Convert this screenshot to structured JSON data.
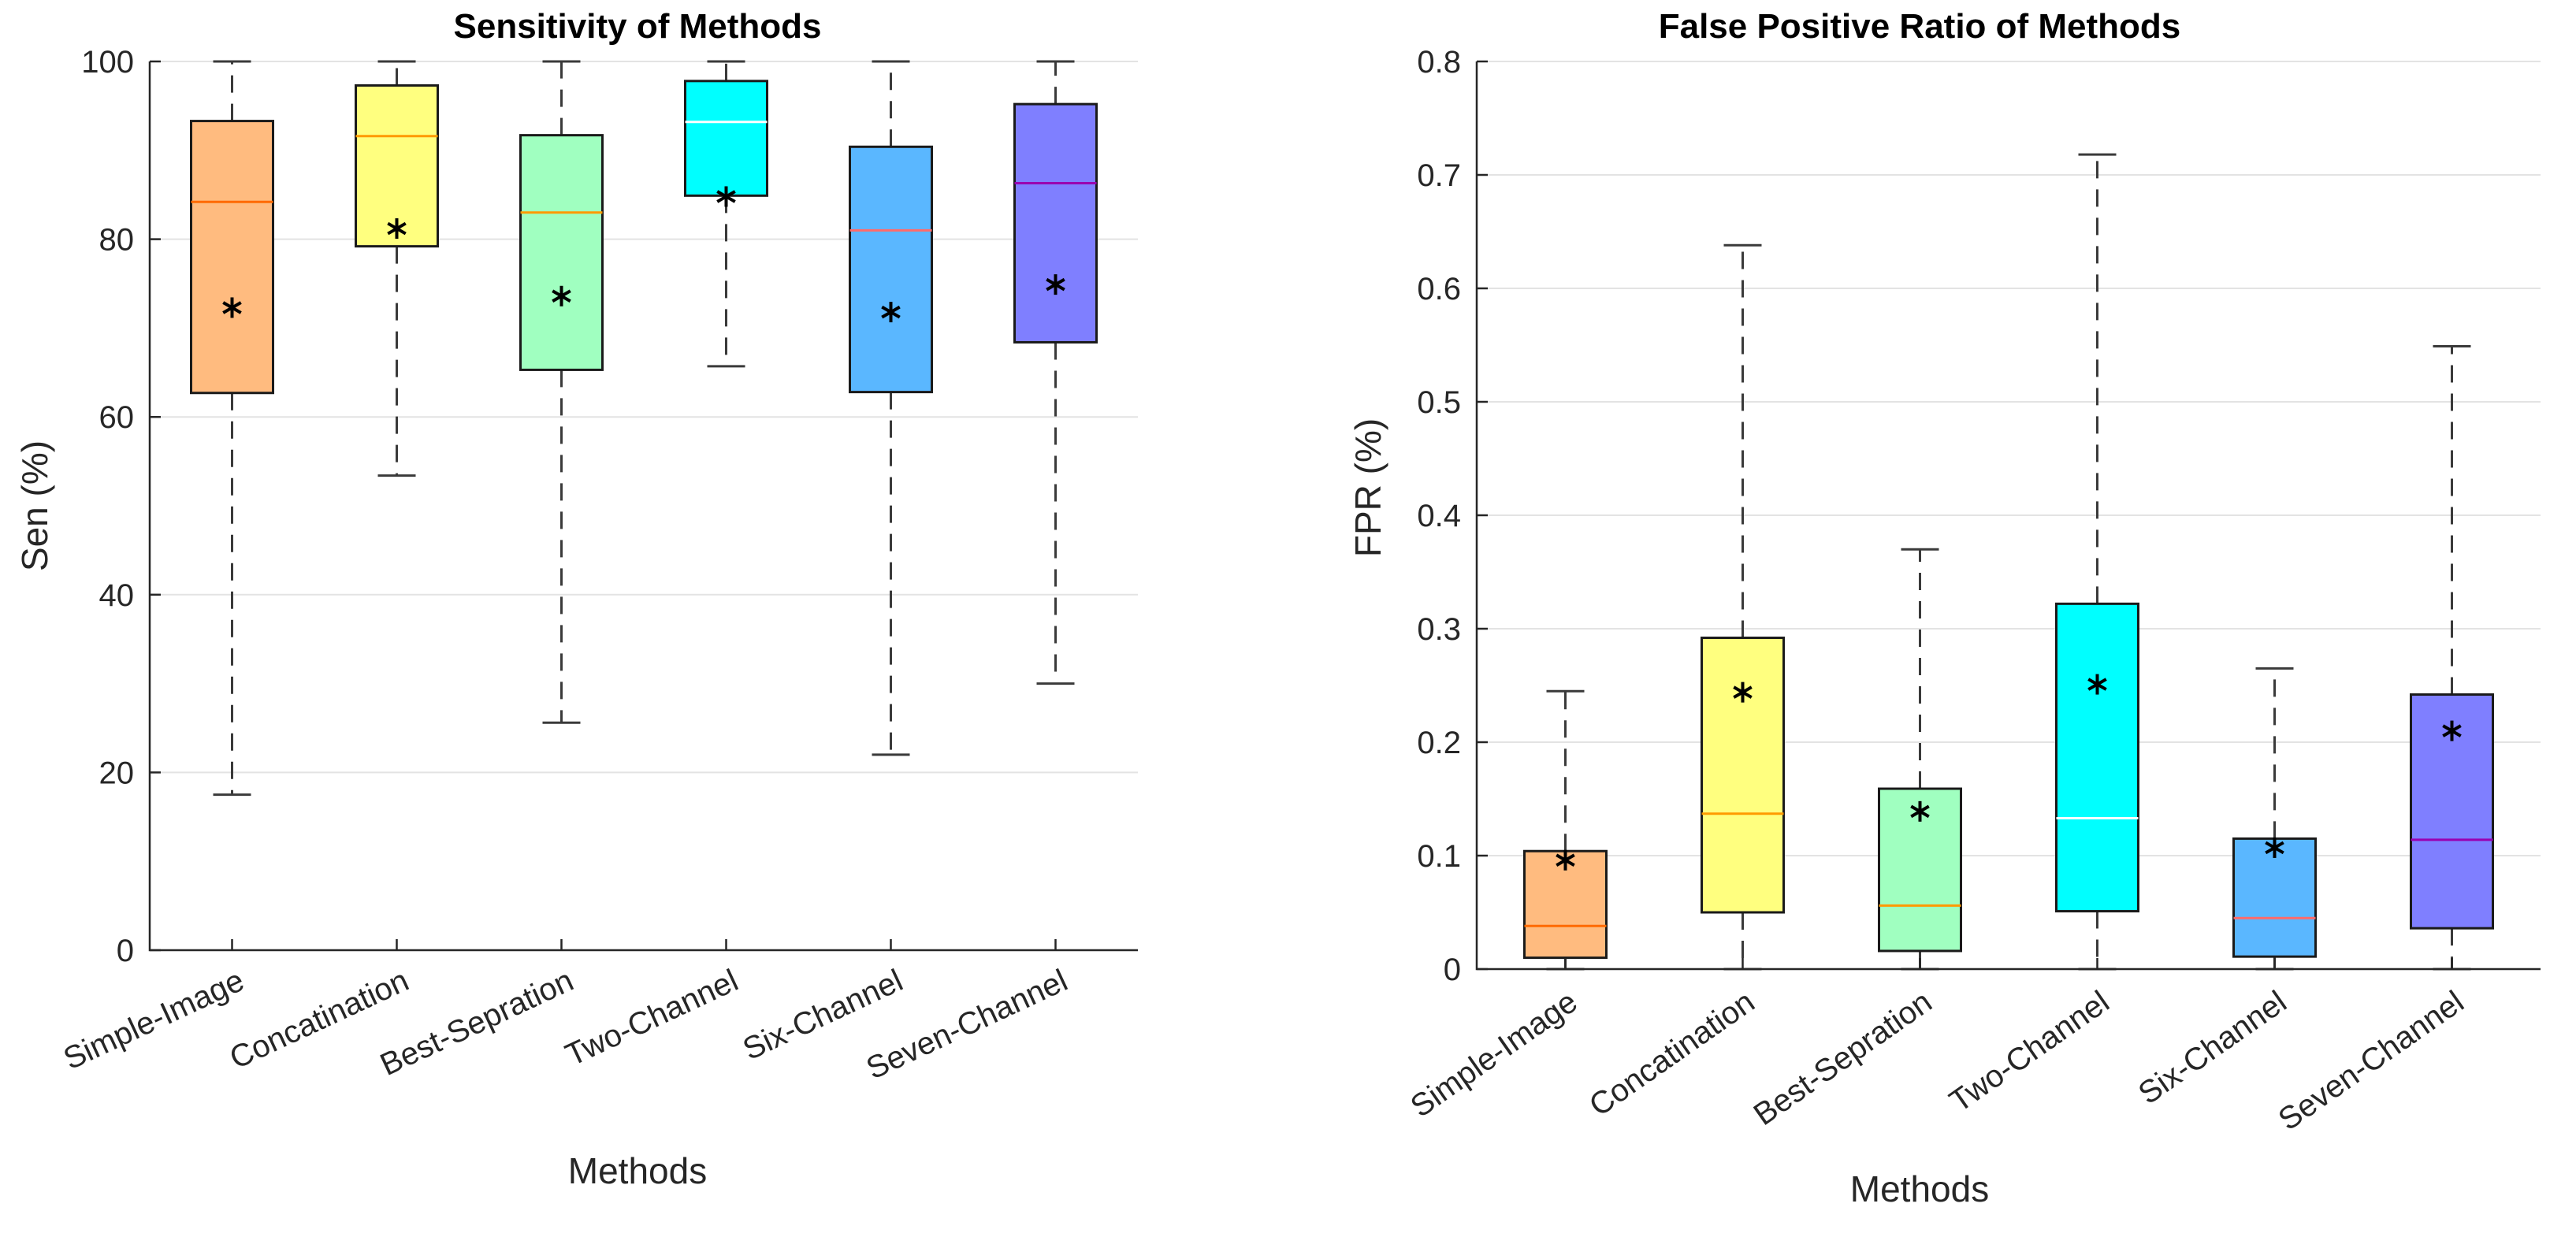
{
  "chart_data": [
    {
      "type": "box",
      "title": "Sensitivity of Methods",
      "xlabel": "Methods",
      "ylabel": "Sen (%)",
      "ylim": [
        0,
        100
      ],
      "yticks": [
        0,
        20,
        40,
        60,
        80,
        100
      ],
      "grid": "horizontal",
      "categories": [
        "Simple-Image",
        "Concatination",
        "Best-Sepration",
        "Two-Channel",
        "Six-Channel",
        "Seven-Channel"
      ],
      "colors": [
        "#ffbb7f",
        "#ffff7f",
        "#a0ffc0",
        "#00ffff",
        "#5ab7ff",
        "#7f7fff"
      ],
      "median_colors": [
        "#ff6a00",
        "#ff9a00",
        "#ff9a00",
        "#ffffff",
        "#ff6a6a",
        "#9a00b0"
      ],
      "boxes": [
        {
          "whisker_low": 17.5,
          "q1": 62.7,
          "median": 84.2,
          "q3": 93.3,
          "whisker_high": 100,
          "mean": 72.3
        },
        {
          "whisker_low": 53.4,
          "q1": 79.2,
          "median": 91.6,
          "q3": 97.3,
          "whisker_high": 100,
          "mean": 81.2
        },
        {
          "whisker_low": 25.6,
          "q1": 65.3,
          "median": 83.0,
          "q3": 91.7,
          "whisker_high": 100,
          "mean": 73.6
        },
        {
          "whisker_low": 65.7,
          "q1": 84.9,
          "median": 93.2,
          "q3": 97.8,
          "whisker_high": 100,
          "mean": 84.8
        },
        {
          "whisker_low": 22.0,
          "q1": 62.8,
          "median": 81.0,
          "q3": 90.4,
          "whisker_high": 100,
          "mean": 71.8
        },
        {
          "whisker_low": 30.0,
          "q1": 68.4,
          "median": 86.3,
          "q3": 95.2,
          "whisker_high": 100,
          "mean": 74.9
        }
      ]
    },
    {
      "type": "box",
      "title": "False Positive Ratio of Methods",
      "xlabel": "Methods",
      "ylabel": "FPR (%)",
      "ylim": [
        0,
        0.8
      ],
      "yticks": [
        0,
        0.1,
        0.2,
        0.3,
        0.4,
        0.5,
        0.6,
        0.7,
        0.8
      ],
      "grid": "horizontal",
      "categories": [
        "Simple-Image",
        "Concatination",
        "Best-Sepration",
        "Two-Channel",
        "Six-Channel",
        "Seven-Channel"
      ],
      "colors": [
        "#ffbb7f",
        "#ffff7f",
        "#a0ffc0",
        "#00ffff",
        "#5ab7ff",
        "#7f7fff"
      ],
      "median_colors": [
        "#ff6a00",
        "#ff9a00",
        "#ff9a00",
        "#ffffff",
        "#ff6a6a",
        "#9a00b0"
      ],
      "boxes": [
        {
          "whisker_low": 0,
          "q1": 0.01,
          "median": 0.038,
          "q3": 0.104,
          "whisker_high": 0.245,
          "mean": 0.096
        },
        {
          "whisker_low": 0,
          "q1": 0.05,
          "median": 0.137,
          "q3": 0.292,
          "whisker_high": 0.638,
          "mean": 0.244
        },
        {
          "whisker_low": 0,
          "q1": 0.016,
          "median": 0.056,
          "q3": 0.159,
          "whisker_high": 0.37,
          "mean": 0.139
        },
        {
          "whisker_low": 0,
          "q1": 0.051,
          "median": 0.133,
          "q3": 0.322,
          "whisker_high": 0.718,
          "mean": 0.251
        },
        {
          "whisker_low": 0,
          "q1": 0.011,
          "median": 0.045,
          "q3": 0.115,
          "whisker_high": 0.265,
          "mean": 0.107
        },
        {
          "whisker_low": 0,
          "q1": 0.036,
          "median": 0.114,
          "q3": 0.242,
          "whisker_high": 0.549,
          "mean": 0.21
        }
      ]
    }
  ]
}
